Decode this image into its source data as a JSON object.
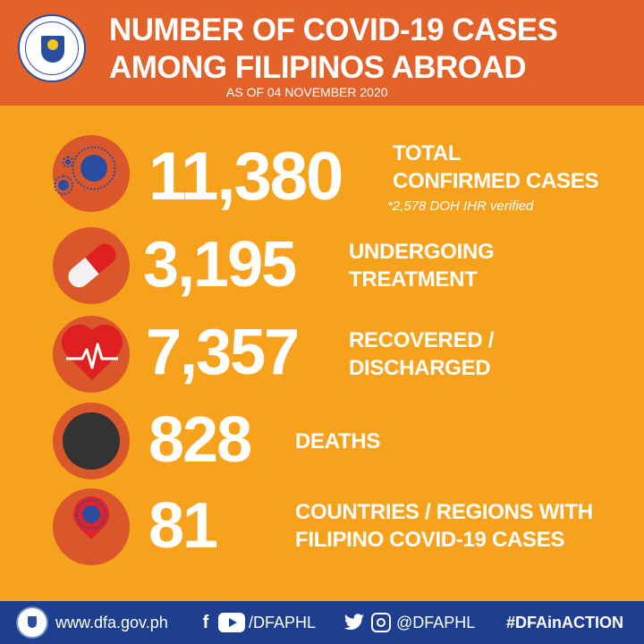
{
  "header": {
    "title_line1": "NUMBER OF COVID-19 CASES",
    "title_line2": "AMONG FILIPINOS ABROAD",
    "subtitle": "AS OF 04 NOVEMBER 2020",
    "seal_text": "DEPARTMENT OF FOREIGN AFFAIRS · PHILIPPINES"
  },
  "stats": [
    {
      "value": "11,380",
      "label_line1": "TOTAL",
      "label_line2": "CONFIRMED CASES",
      "note": "*2,578 DOH IHR verified",
      "icon": "virus-icon"
    },
    {
      "value": "3,195",
      "label_line1": "UNDERGOING",
      "label_line2": "TREATMENT",
      "icon": "pill-icon"
    },
    {
      "value": "7,357",
      "label_line1": "RECOVERED /",
      "label_line2": "DISCHARGED",
      "icon": "heartbeat-icon"
    },
    {
      "value": "828",
      "label_line1": "DEATHS",
      "icon": "death-icon"
    },
    {
      "value": "81",
      "label_line1": "COUNTRIES / REGIONS WITH",
      "label_line2": "FILIPINO COVID-19 CASES",
      "icon": "location-pin-icon"
    }
  ],
  "footer": {
    "website": "www.dfa.gov.ph",
    "facebook_youtube_handle": "/DFAPHL",
    "twitter_instagram_handle": "@DFAPHL",
    "hashtag": "#DFAinACTION"
  },
  "colors": {
    "background": "#f7a21c",
    "header": "#e2622a",
    "footer": "#1e3f8f",
    "icon_circle": "#d9572a"
  }
}
